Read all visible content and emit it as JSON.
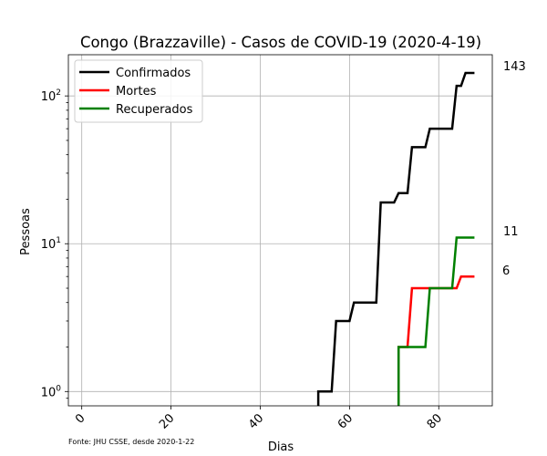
{
  "chart_data": {
    "type": "line",
    "title": "Congo (Brazzaville) - Casos de COVID-19 (2020-4-19)",
    "xlabel": "Dias",
    "ylabel": "Pessoas",
    "y_scale": "log",
    "xlim": [
      -3,
      92
    ],
    "ylim": [
      0.8,
      190
    ],
    "x_ticks": [
      0,
      20,
      40,
      60,
      80
    ],
    "x_tick_labels": [
      "0",
      "20",
      "40",
      "60",
      "80"
    ],
    "y_ticks": [
      1,
      10,
      100
    ],
    "y_tick_labels": [
      "10^0",
      "10^1",
      "10^2"
    ],
    "grid": true,
    "legend_position": "top-left",
    "end_labels": [
      "143",
      "11",
      "6"
    ],
    "source_note": "Fonte: JHU CSSE, desde 2020-1-22",
    "series": [
      {
        "name": "Confirmados",
        "color": "#000000",
        "points": [
          [
            53,
            0.8
          ],
          [
            53,
            1
          ],
          [
            56,
            1
          ],
          [
            57,
            3
          ],
          [
            60,
            3
          ],
          [
            61,
            4
          ],
          [
            66,
            4
          ],
          [
            67,
            19
          ],
          [
            70,
            19
          ],
          [
            71,
            22
          ],
          [
            73,
            22
          ],
          [
            74,
            45
          ],
          [
            77,
            45
          ],
          [
            78,
            60
          ],
          [
            83,
            60
          ],
          [
            84,
            117
          ],
          [
            85,
            117
          ],
          [
            86,
            143
          ],
          [
            88,
            143
          ]
        ]
      },
      {
        "name": "Mortes",
        "color": "#ff0000",
        "points": [
          [
            71,
            0.8
          ],
          [
            71,
            2
          ],
          [
            73,
            2
          ],
          [
            74,
            5
          ],
          [
            84,
            5
          ],
          [
            85,
            6
          ],
          [
            88,
            6
          ]
        ]
      },
      {
        "name": "Recuperados",
        "color": "#008000",
        "points": [
          [
            71,
            0.8
          ],
          [
            71,
            2
          ],
          [
            77,
            2
          ],
          [
            78,
            5
          ],
          [
            83,
            5
          ],
          [
            84,
            11
          ],
          [
            88,
            11
          ]
        ]
      }
    ]
  }
}
